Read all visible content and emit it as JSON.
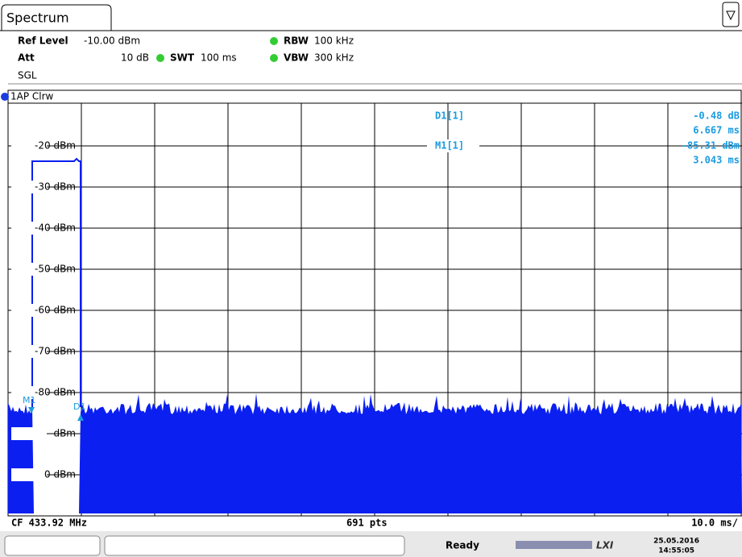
{
  "tab": {
    "title": "Spectrum"
  },
  "settings": {
    "ref_level_label": "Ref Level",
    "ref_level": "-10.00 dBm",
    "rbw_label": "RBW",
    "rbw": "100 kHz",
    "att_label": "Att",
    "att": "10 dB",
    "swt_label": "SWT",
    "swt": "100 ms",
    "vbw_label": "VBW",
    "vbw": "300 kHz",
    "mode": "SGL"
  },
  "trace": {
    "label": "1AP Clrw"
  },
  "markers": [
    {
      "name": "D1[1]",
      "level": "-0.48 dB",
      "time": "6.667 ms"
    },
    {
      "name": "M1[1]",
      "level": "-85.31 dBm",
      "time": "3.043 ms"
    }
  ],
  "marker_tags": [
    "M1",
    "D1"
  ],
  "y_labels": [
    "-20 dBm",
    "-30 dBm",
    "-40 dBm",
    "-50 dBm",
    "-60 dBm",
    "-70 dBm",
    "-80 dBm",
    "dBm",
    "0 dBm"
  ],
  "footer": {
    "center_freq": "CF 433.92 MHz",
    "points": "691 pts",
    "span": "10.0 ms/"
  },
  "status": {
    "state": "Ready",
    "brand": "LXI",
    "date": "25.05.2016",
    "time": "14:55:05"
  }
}
